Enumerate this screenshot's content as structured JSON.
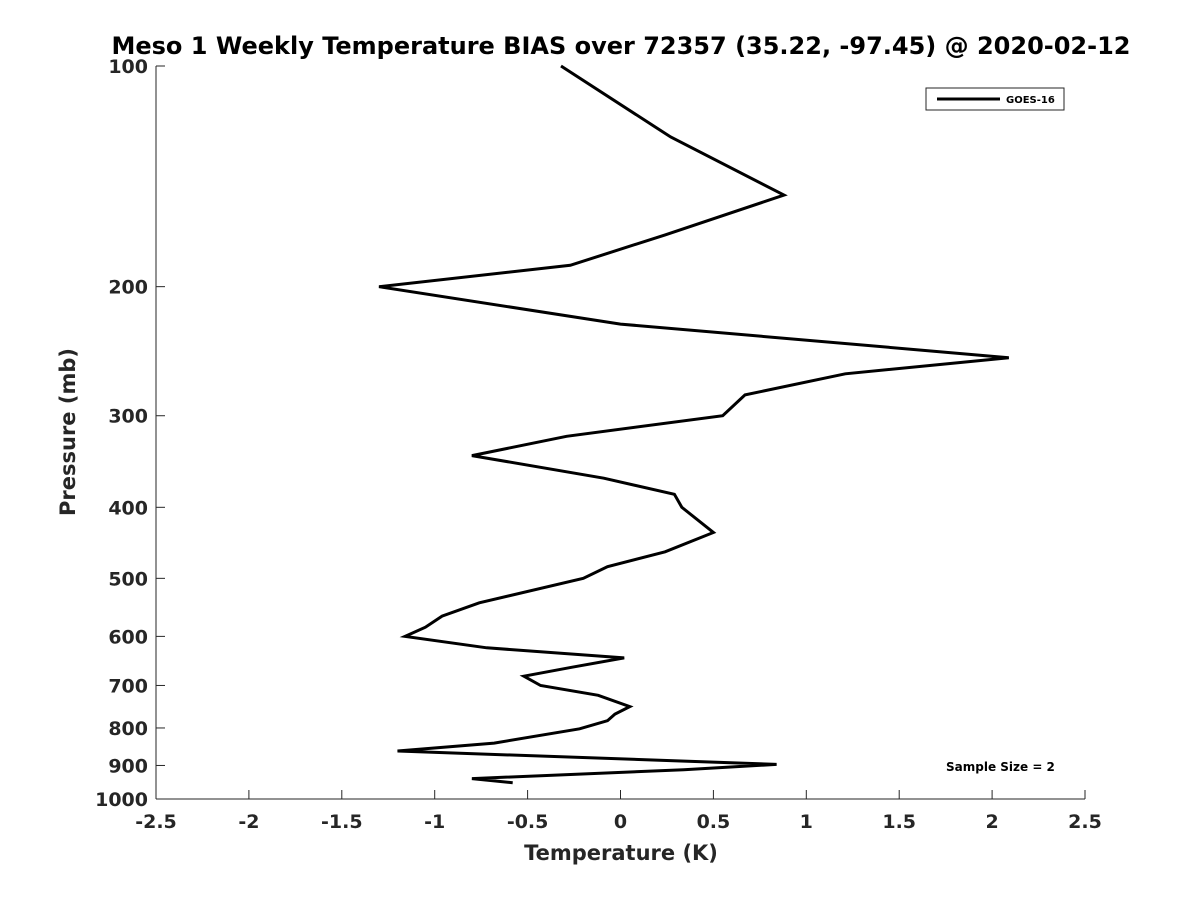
{
  "chart_data": {
    "type": "line",
    "title": "Meso 1 Weekly Temperature BIAS over 72357 (35.22, -97.45) @ 2020-02-12",
    "xlabel": "Temperature (K)",
    "ylabel": "Pressure (mb)",
    "xlim": [
      -2.5,
      2.5
    ],
    "ylim": [
      100,
      1000
    ],
    "y_scale": "log",
    "y_reversed": true,
    "grid": false,
    "legend_position": "top-right",
    "x_ticks": [
      -2.5,
      -2,
      -1.5,
      -1,
      -0.5,
      0,
      0.5,
      1,
      1.5,
      2,
      2.5
    ],
    "x_tick_labels": [
      "-2.5",
      "-2",
      "-1.5",
      "-1",
      "-0.5",
      "0",
      "0.5",
      "1",
      "1.5",
      "2",
      "2.5"
    ],
    "y_ticks": [
      100,
      200,
      300,
      400,
      500,
      600,
      700,
      800,
      900,
      1000
    ],
    "y_tick_labels": [
      "100",
      "200",
      "300",
      "400",
      "500",
      "600",
      "700",
      "800",
      "900",
      "1000"
    ],
    "annotation": "Sample Size = 2",
    "series": [
      {
        "name": "GOES-16",
        "color": "#000000",
        "points": [
          {
            "t": -0.32,
            "p": 100
          },
          {
            "t": 0.27,
            "p": 125
          },
          {
            "t": 0.88,
            "p": 150
          },
          {
            "t": 0.24,
            "p": 170
          },
          {
            "t": -0.27,
            "p": 187
          },
          {
            "t": -1.3,
            "p": 200
          },
          {
            "t": 0.0,
            "p": 225
          },
          {
            "t": 2.09,
            "p": 250
          },
          {
            "t": 1.21,
            "p": 263
          },
          {
            "t": 0.67,
            "p": 281
          },
          {
            "t": 0.55,
            "p": 300
          },
          {
            "t": -0.29,
            "p": 320
          },
          {
            "t": -0.8,
            "p": 340
          },
          {
            "t": -0.09,
            "p": 365
          },
          {
            "t": 0.29,
            "p": 384
          },
          {
            "t": 0.33,
            "p": 400
          },
          {
            "t": 0.5,
            "p": 433
          },
          {
            "t": 0.24,
            "p": 460
          },
          {
            "t": -0.07,
            "p": 482
          },
          {
            "t": -0.2,
            "p": 500
          },
          {
            "t": -0.76,
            "p": 540
          },
          {
            "t": -0.96,
            "p": 563
          },
          {
            "t": -1.05,
            "p": 583
          },
          {
            "t": -1.16,
            "p": 600
          },
          {
            "t": -0.72,
            "p": 622
          },
          {
            "t": 0.02,
            "p": 642
          },
          {
            "t": -0.26,
            "p": 661
          },
          {
            "t": -0.52,
            "p": 680
          },
          {
            "t": -0.43,
            "p": 700
          },
          {
            "t": -0.12,
            "p": 722
          },
          {
            "t": 0.05,
            "p": 748
          },
          {
            "t": -0.03,
            "p": 766
          },
          {
            "t": -0.07,
            "p": 782
          },
          {
            "t": -0.22,
            "p": 802
          },
          {
            "t": -0.68,
            "p": 839
          },
          {
            "t": -1.2,
            "p": 860
          },
          {
            "t": 0.84,
            "p": 897
          },
          {
            "t": 0.34,
            "p": 912
          },
          {
            "t": -0.8,
            "p": 938
          },
          {
            "t": -0.58,
            "p": 950
          }
        ]
      }
    ]
  }
}
